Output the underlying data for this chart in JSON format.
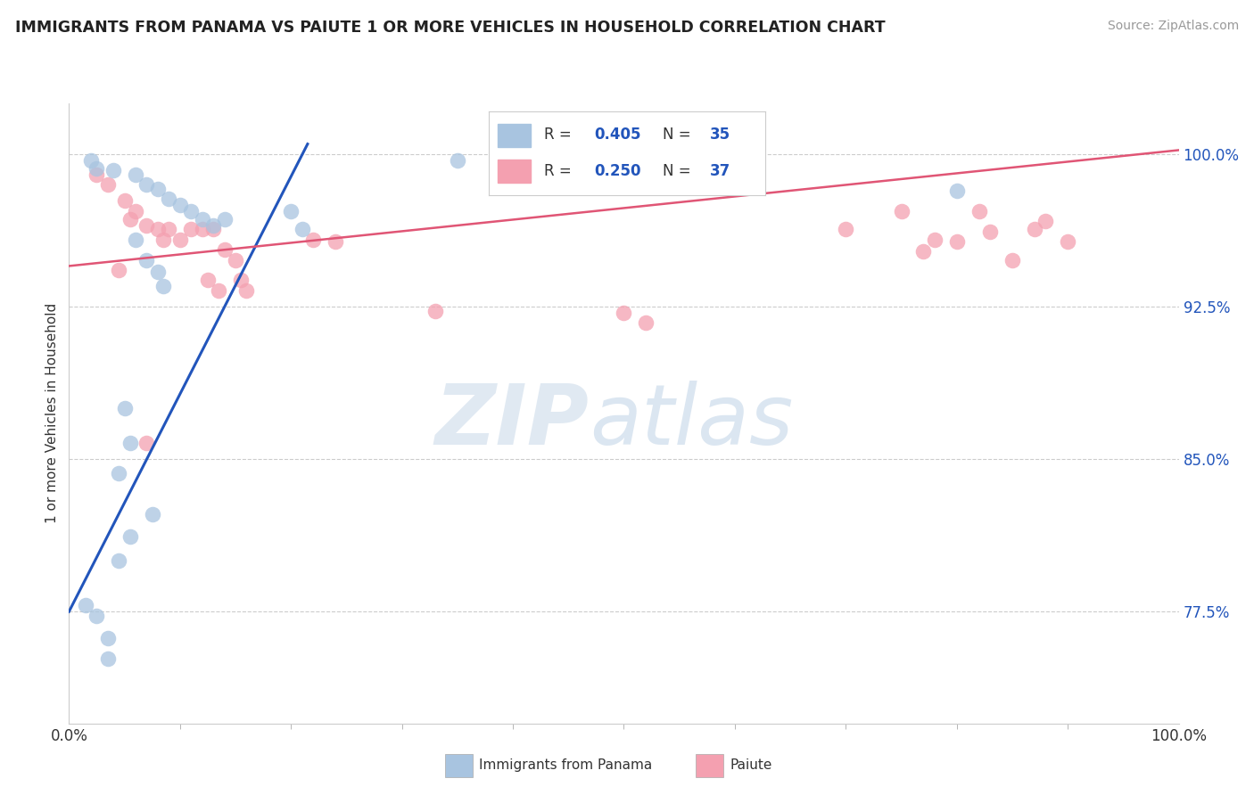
{
  "title": "IMMIGRANTS FROM PANAMA VS PAIUTE 1 OR MORE VEHICLES IN HOUSEHOLD CORRELATION CHART",
  "source": "Source: ZipAtlas.com",
  "ylabel": "1 or more Vehicles in Household",
  "xlim": [
    0.0,
    1.0
  ],
  "ylim": [
    0.72,
    1.025
  ],
  "yticks": [
    0.775,
    0.85,
    0.925,
    1.0
  ],
  "ytick_labels": [
    "77.5%",
    "85.0%",
    "92.5%",
    "100.0%"
  ],
  "blue_color": "#a8c4e0",
  "pink_color": "#f4a0b0",
  "blue_line_color": "#2255bb",
  "pink_line_color": "#e05575",
  "legend_r_color": "#2255bb",
  "blue_scatter": [
    [
      0.02,
      0.997
    ],
    [
      0.025,
      0.993
    ],
    [
      0.04,
      0.992
    ],
    [
      0.06,
      0.99
    ],
    [
      0.07,
      0.985
    ],
    [
      0.08,
      0.983
    ],
    [
      0.09,
      0.978
    ],
    [
      0.1,
      0.975
    ],
    [
      0.11,
      0.972
    ],
    [
      0.12,
      0.968
    ],
    [
      0.13,
      0.965
    ],
    [
      0.14,
      0.968
    ],
    [
      0.2,
      0.972
    ],
    [
      0.21,
      0.963
    ],
    [
      0.06,
      0.958
    ],
    [
      0.07,
      0.948
    ],
    [
      0.08,
      0.942
    ],
    [
      0.085,
      0.935
    ],
    [
      0.05,
      0.875
    ],
    [
      0.055,
      0.858
    ],
    [
      0.045,
      0.843
    ],
    [
      0.075,
      0.823
    ],
    [
      0.055,
      0.812
    ],
    [
      0.045,
      0.8
    ],
    [
      0.015,
      0.778
    ],
    [
      0.025,
      0.773
    ],
    [
      0.035,
      0.762
    ],
    [
      0.035,
      0.752
    ],
    [
      0.35,
      0.997
    ],
    [
      0.8,
      0.982
    ]
  ],
  "pink_scatter": [
    [
      0.025,
      0.99
    ],
    [
      0.035,
      0.985
    ],
    [
      0.05,
      0.977
    ],
    [
      0.055,
      0.968
    ],
    [
      0.06,
      0.972
    ],
    [
      0.07,
      0.965
    ],
    [
      0.08,
      0.963
    ],
    [
      0.085,
      0.958
    ],
    [
      0.09,
      0.963
    ],
    [
      0.1,
      0.958
    ],
    [
      0.11,
      0.963
    ],
    [
      0.12,
      0.963
    ],
    [
      0.13,
      0.963
    ],
    [
      0.14,
      0.953
    ],
    [
      0.15,
      0.948
    ],
    [
      0.16,
      0.933
    ],
    [
      0.22,
      0.958
    ],
    [
      0.24,
      0.957
    ],
    [
      0.045,
      0.943
    ],
    [
      0.125,
      0.938
    ],
    [
      0.135,
      0.933
    ],
    [
      0.155,
      0.938
    ],
    [
      0.07,
      0.858
    ],
    [
      0.33,
      0.923
    ],
    [
      0.5,
      0.922
    ],
    [
      0.52,
      0.917
    ],
    [
      0.7,
      0.963
    ],
    [
      0.75,
      0.972
    ],
    [
      0.8,
      0.957
    ],
    [
      0.82,
      0.972
    ],
    [
      0.83,
      0.962
    ],
    [
      0.85,
      0.948
    ],
    [
      0.87,
      0.963
    ],
    [
      0.88,
      0.967
    ],
    [
      0.9,
      0.957
    ],
    [
      0.78,
      0.958
    ],
    [
      0.77,
      0.952
    ]
  ],
  "blue_trendline": [
    [
      0.0,
      0.775
    ],
    [
      0.215,
      1.005
    ]
  ],
  "pink_trendline": [
    [
      0.0,
      0.945
    ],
    [
      1.0,
      1.002
    ]
  ],
  "background_color": "#ffffff",
  "grid_color": "#cccccc",
  "watermark_zip": "ZIP",
  "watermark_atlas": "atlas"
}
